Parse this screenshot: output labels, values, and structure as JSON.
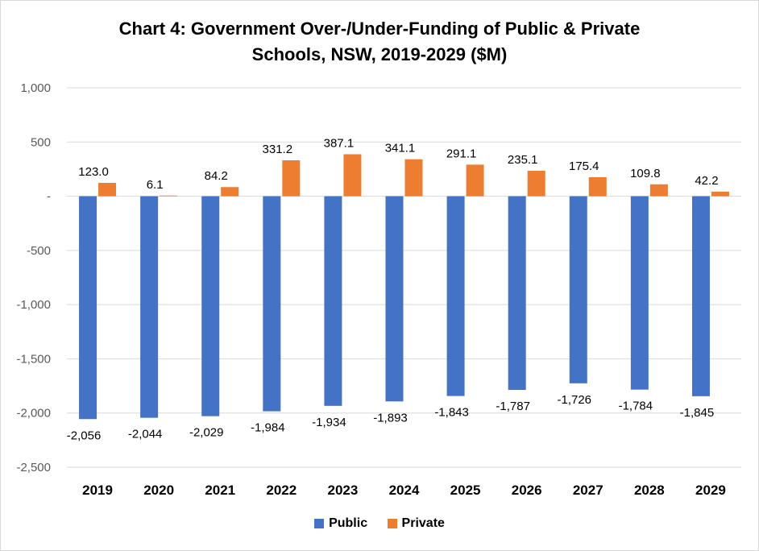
{
  "chart_data": {
    "type": "bar",
    "title_lines": [
      "Chart 4: Government Over-/Under-Funding of Public & Private",
      "Schools, NSW, 2019-2029 ($M)"
    ],
    "categories": [
      "2019",
      "2020",
      "2021",
      "2022",
      "2023",
      "2024",
      "2025",
      "2026",
      "2027",
      "2028",
      "2029"
    ],
    "series": [
      {
        "name": "Public",
        "color": "#4472c4",
        "values": [
          -2056,
          -2044,
          -2029,
          -1984,
          -1934,
          -1893,
          -1843,
          -1787,
          -1726,
          -1784,
          -1845
        ],
        "labels": [
          "-2,056",
          "-2,044",
          "-2,029",
          "-1,984",
          "-1,934",
          "-1,893",
          "-1,843",
          "-1,787",
          "-1,726",
          "-1,784",
          "-1,845"
        ]
      },
      {
        "name": "Private",
        "color": "#ed7d31",
        "values": [
          123.0,
          6.1,
          84.2,
          331.2,
          387.1,
          341.1,
          291.1,
          235.1,
          175.4,
          109.8,
          42.2
        ],
        "labels": [
          "123.0",
          "6.1",
          "84.2",
          "331.2",
          "387.1",
          "341.1",
          "291.1",
          "235.1",
          "175.4",
          "109.8",
          "42.2"
        ]
      }
    ],
    "ylim": [
      -2500,
      1000
    ],
    "yticks": [
      1000,
      500,
      0,
      -500,
      -1000,
      -1500,
      -2000,
      -2500
    ],
    "ytick_labels": [
      "1,000",
      "500",
      "-",
      "-500",
      "-1,000",
      "-1,500",
      "-2,000",
      "-2,500"
    ],
    "xlabel": "",
    "ylabel": "",
    "grid": true,
    "legend_position": "bottom"
  }
}
